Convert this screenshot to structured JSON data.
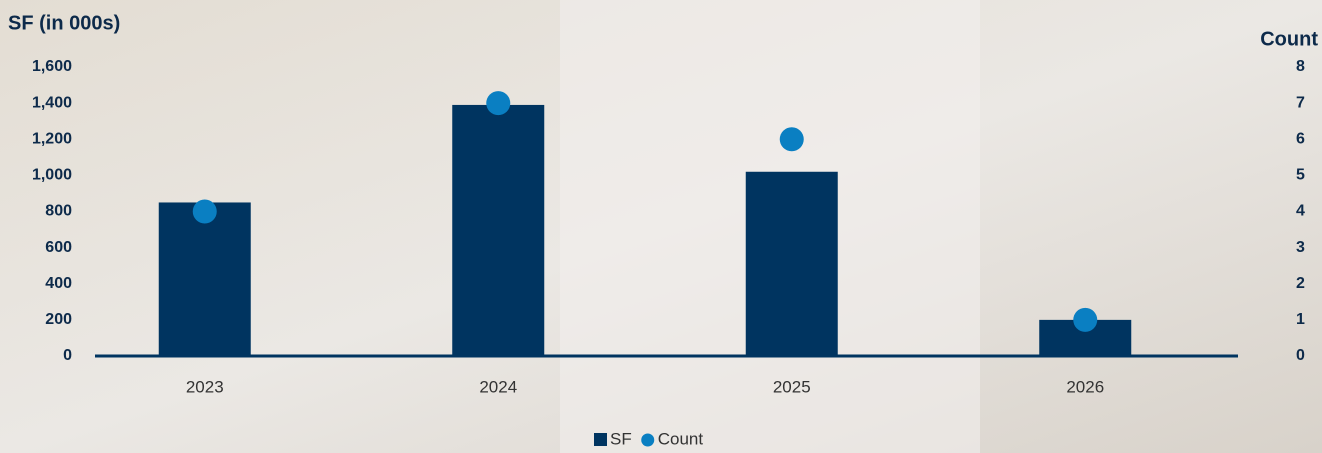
{
  "chart_data": {
    "type": "bar",
    "y_title": "SF (in 000s)",
    "y2_title": "Count",
    "categories": [
      "2023",
      "2024",
      "2025",
      "2026"
    ],
    "series": [
      {
        "name": "SF",
        "color": "#003460",
        "type": "bar",
        "values": [
          850,
          1390,
          1020,
          200
        ]
      },
      {
        "name": "Count",
        "color": "#0a7fc2",
        "type": "scatter",
        "axis": "y2",
        "values": [
          4,
          7,
          6,
          1
        ]
      }
    ],
    "ylim": [
      0,
      1600
    ],
    "yticks": [
      0,
      200,
      400,
      600,
      800,
      {
        "value": 1000,
        "label": "1,000"
      },
      {
        "value": 1200,
        "label": "1,200"
      },
      {
        "value": 1400,
        "label": "1,400"
      },
      {
        "value": 1600,
        "label": "1,600"
      }
    ],
    "y2lim": [
      0,
      8
    ],
    "y2ticks": [
      0,
      1,
      2,
      3,
      4,
      5,
      6,
      7,
      8
    ],
    "legend": "bottom"
  }
}
